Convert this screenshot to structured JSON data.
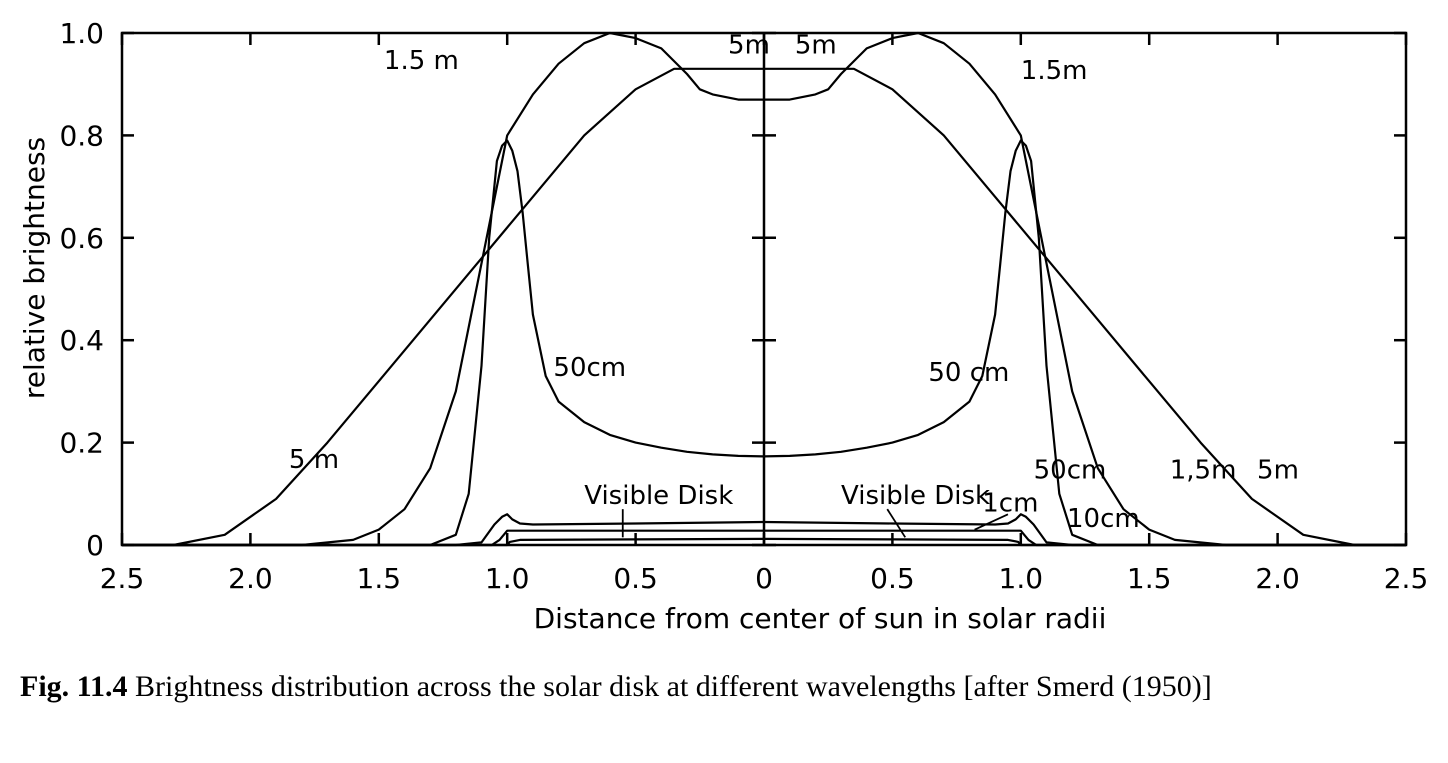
{
  "chart_data": {
    "type": "line",
    "xlabel": "Distance from center of sun in solar radii",
    "ylabel": "relative brightness",
    "xlim": [
      -2.5,
      2.5
    ],
    "ylim": [
      0,
      1.0
    ],
    "x_tick_labels": [
      "2.5",
      "2.0",
      "1.5",
      "1.0",
      "0.5",
      "0",
      "0.5",
      "1.0",
      "1.5",
      "2.0",
      "2.5"
    ],
    "y_tick_labels": [
      "0",
      "0.2",
      "0.4",
      "0.6",
      "0.8",
      "1.0"
    ],
    "grid": false,
    "series": [
      {
        "name": "5m",
        "x": [
          -2.5,
          -2.3,
          -2.1,
          -1.9,
          -1.7,
          -1.5,
          -1.3,
          -1.1,
          -0.9,
          -0.7,
          -0.5,
          -0.35,
          -0.25,
          -0.1,
          0,
          0.1,
          0.25,
          0.35,
          0.5,
          0.7,
          0.9,
          1.1,
          1.3,
          1.5,
          1.7,
          1.9,
          2.1,
          2.3,
          2.5
        ],
        "y": [
          0,
          0,
          0.02,
          0.09,
          0.2,
          0.32,
          0.44,
          0.56,
          0.68,
          0.8,
          0.89,
          0.93,
          0.93,
          0.93,
          0.93,
          0.93,
          0.93,
          0.93,
          0.89,
          0.8,
          0.68,
          0.56,
          0.44,
          0.32,
          0.2,
          0.09,
          0.02,
          0,
          0
        ]
      },
      {
        "name": "1.5m",
        "x": [
          -2.5,
          -1.8,
          -1.6,
          -1.5,
          -1.4,
          -1.3,
          -1.2,
          -1.1,
          -1.0,
          -0.9,
          -0.8,
          -0.7,
          -0.6,
          -0.5,
          -0.4,
          -0.3,
          -0.25,
          -0.2,
          -0.1,
          0,
          0.1,
          0.2,
          0.25,
          0.3,
          0.4,
          0.5,
          0.6,
          0.7,
          0.8,
          0.9,
          1.0,
          1.1,
          1.2,
          1.3,
          1.4,
          1.5,
          1.6,
          1.8,
          2.5
        ],
        "y": [
          0,
          0,
          0.01,
          0.03,
          0.07,
          0.15,
          0.3,
          0.55,
          0.8,
          0.88,
          0.94,
          0.98,
          1.0,
          0.99,
          0.97,
          0.92,
          0.89,
          0.88,
          0.87,
          0.87,
          0.87,
          0.88,
          0.89,
          0.92,
          0.97,
          0.99,
          1.0,
          0.98,
          0.94,
          0.88,
          0.8,
          0.55,
          0.3,
          0.15,
          0.07,
          0.03,
          0.01,
          0,
          0
        ]
      },
      {
        "name": "50cm",
        "x": [
          -2.5,
          -1.3,
          -1.2,
          -1.15,
          -1.1,
          -1.07,
          -1.04,
          -1.02,
          -1.0,
          -0.98,
          -0.96,
          -0.94,
          -0.92,
          -0.9,
          -0.85,
          -0.8,
          -0.7,
          -0.6,
          -0.5,
          -0.4,
          -0.3,
          -0.2,
          -0.1,
          0,
          0.1,
          0.2,
          0.3,
          0.4,
          0.5,
          0.6,
          0.7,
          0.8,
          0.85,
          0.9,
          0.92,
          0.94,
          0.96,
          0.98,
          1.0,
          1.02,
          1.04,
          1.07,
          1.1,
          1.15,
          1.2,
          1.3,
          2.5
        ],
        "y": [
          0,
          0,
          0.02,
          0.1,
          0.35,
          0.6,
          0.75,
          0.78,
          0.79,
          0.77,
          0.73,
          0.65,
          0.55,
          0.45,
          0.33,
          0.28,
          0.24,
          0.215,
          0.2,
          0.19,
          0.182,
          0.177,
          0.174,
          0.173,
          0.174,
          0.177,
          0.182,
          0.19,
          0.2,
          0.215,
          0.24,
          0.28,
          0.33,
          0.45,
          0.55,
          0.65,
          0.73,
          0.77,
          0.79,
          0.78,
          0.75,
          0.6,
          0.35,
          0.1,
          0.02,
          0,
          0
        ]
      },
      {
        "name": "10cm",
        "x": [
          -2.5,
          -1.2,
          -1.1,
          -1.05,
          -1.02,
          -1.0,
          -0.98,
          -0.95,
          -0.9,
          -0.5,
          0,
          0.5,
          0.9,
          0.95,
          0.98,
          1.0,
          1.02,
          1.05,
          1.1,
          1.2,
          2.5
        ],
        "y": [
          0,
          0,
          0.005,
          0.04,
          0.055,
          0.06,
          0.05,
          0.042,
          0.04,
          0.042,
          0.045,
          0.042,
          0.04,
          0.042,
          0.05,
          0.06,
          0.055,
          0.04,
          0.005,
          0,
          0
        ]
      },
      {
        "name": "1cm",
        "x": [
          -2.5,
          -1.06,
          -1.03,
          -1.0,
          0,
          1.0,
          1.03,
          1.06,
          2.5
        ],
        "y": [
          0,
          0,
          0.01,
          0.028,
          0.028,
          0.028,
          0.01,
          0,
          0
        ]
      },
      {
        "name": "Visible Disk",
        "x": [
          -2.5,
          -1.0,
          -0.99,
          -0.95,
          -0.5,
          0,
          0.5,
          0.95,
          0.99,
          1.0,
          2.5
        ],
        "y": [
          0,
          0,
          0.006,
          0.01,
          0.011,
          0.012,
          0.011,
          0.01,
          0.006,
          0,
          0
        ]
      }
    ],
    "annotations": [
      {
        "text": "1.5 m",
        "x": -1.48,
        "y": 0.93
      },
      {
        "text": "5m",
        "x": -0.14,
        "y": 0.96
      },
      {
        "text": "5m",
        "x": 0.12,
        "y": 0.96
      },
      {
        "text": "1.5m",
        "x": 1.0,
        "y": 0.91
      },
      {
        "text": "50cm",
        "x": -0.82,
        "y": 0.33
      },
      {
        "text": "50 cm",
        "x": 0.64,
        "y": 0.32
      },
      {
        "text": "5 m",
        "x": -1.85,
        "y": 0.15
      },
      {
        "text": "50cm",
        "x": 1.05,
        "y": 0.13
      },
      {
        "text": "1,5m",
        "x": 1.58,
        "y": 0.13
      },
      {
        "text": "5m",
        "x": 1.92,
        "y": 0.13
      },
      {
        "text": "Visible Disk",
        "x": -0.7,
        "y": 0.08
      },
      {
        "text": "Visible Disk",
        "x": 0.3,
        "y": 0.08
      },
      {
        "text": "1cm",
        "x": 0.85,
        "y": 0.065
      },
      {
        "text": "10cm",
        "x": 1.18,
        "y": 0.035
      }
    ]
  },
  "caption": {
    "label": "Fig. 11.4",
    "text": "Brightness distribution across the solar disk at different wavelengths [after Smerd (1950)]"
  }
}
